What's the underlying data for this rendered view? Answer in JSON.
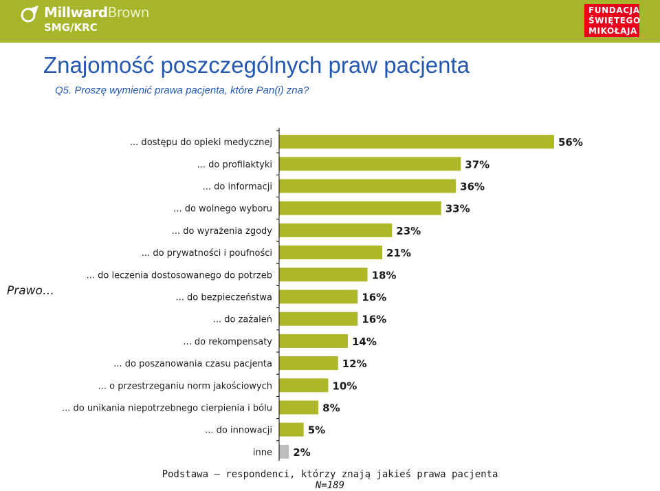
{
  "header": {
    "brand_name_1": "Millward",
    "brand_name_2": "Brown",
    "brand_sub": "SMG/KRC",
    "foundation_lines": [
      "FUNDACJA",
      "ŚWIĘTEGO",
      "MIKOŁAJA"
    ],
    "brand_color": "#a6b52a",
    "foundation_color": "#e8001c"
  },
  "title": "Znajomość poszczególnych praw pacjenta",
  "subtitle": "Q5. Proszę wymienić prawa pacjenta, które Pan(i) zna?",
  "chart_data": {
    "type": "bar",
    "orientation": "horizontal",
    "group_label": "Prawo…",
    "categories": [
      "... dostępu do opieki medycznej",
      "... do profilaktyki",
      "... do informacji",
      "... do wolnego wyboru",
      "... do wyrażenia zgody",
      "... do prywatności i poufności",
      "... do leczenia dostosowanego do potrzeb",
      "... do bezpieczeństwa",
      "... do zażaleń",
      "... do rekompensaty",
      "... do poszanowania czasu pacjenta",
      "... o przestrzeganiu norm jakościowych",
      "... do unikania niepotrzebnego cierpienia i bólu",
      "... do innowacji",
      "inne"
    ],
    "values": [
      56,
      37,
      36,
      33,
      23,
      21,
      18,
      16,
      16,
      14,
      12,
      10,
      8,
      5,
      2
    ],
    "value_labels": [
      "56%",
      "37%",
      "36%",
      "33%",
      "23%",
      "21%",
      "18%",
      "16%",
      "16%",
      "14%",
      "12%",
      "10%",
      "8%",
      "5%",
      "2%"
    ],
    "bar_color": "#aeb728",
    "other_bar_color": "#bdbdbd",
    "xlim": [
      0,
      56
    ]
  },
  "footer": {
    "base": "Podstawa – respondenci, którzy znają jakieś prawa pacjenta",
    "n": "N=189"
  }
}
